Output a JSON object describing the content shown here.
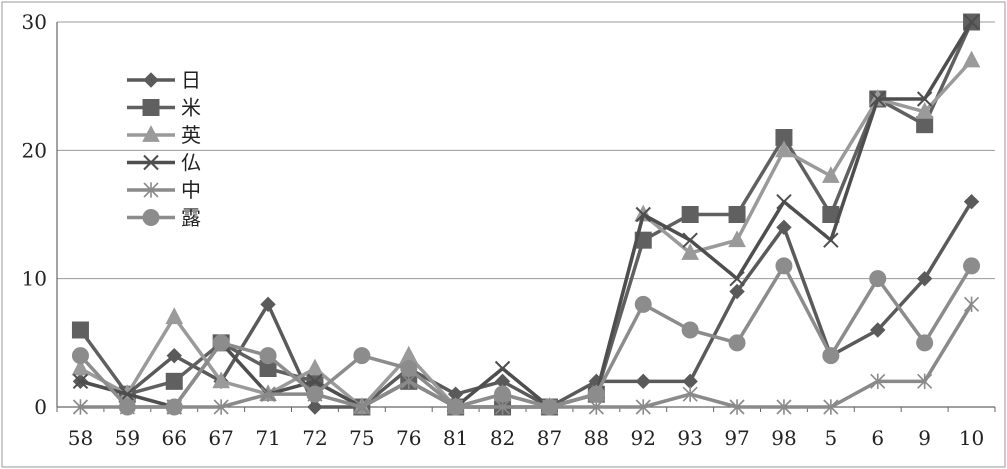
{
  "chart_data": {
    "type": "line",
    "title": "",
    "xlabel": "",
    "ylabel": "",
    "ylim": [
      0,
      30
    ],
    "yticks": [
      0,
      10,
      20,
      30
    ],
    "grid": "horizontal",
    "legend_position": "left",
    "categories": [
      "58",
      "59",
      "66",
      "67",
      "71",
      "72",
      "75",
      "76",
      "81",
      "82",
      "87",
      "88",
      "92",
      "93",
      "97",
      "98",
      "5",
      "6",
      "9",
      "10"
    ],
    "series": [
      {
        "name": "日",
        "marker": "diamond",
        "color": "#5a5a5a",
        "values": [
          2,
          1,
          4,
          2,
          8,
          0,
          0,
          3,
          1,
          2,
          0,
          2,
          2,
          2,
          9,
          14,
          4,
          6,
          10,
          16
        ]
      },
      {
        "name": "米",
        "marker": "square",
        "color": "#606060",
        "values": [
          6,
          1,
          2,
          5,
          3,
          2,
          0,
          2,
          0,
          0,
          0,
          1,
          13,
          15,
          15,
          21,
          15,
          24,
          22,
          30
        ]
      },
      {
        "name": "英",
        "marker": "triangle",
        "color": "#9a9a9a",
        "values": [
          3,
          1,
          7,
          2,
          1,
          3,
          0,
          4,
          0,
          1,
          0,
          1,
          15,
          12,
          13,
          20,
          18,
          24,
          23,
          27
        ]
      },
      {
        "name": "仏",
        "marker": "x",
        "color": "#4e4e4e",
        "values": [
          2,
          1,
          0,
          5,
          1,
          2,
          0,
          2,
          0,
          3,
          0,
          1,
          15,
          13,
          10,
          16,
          13,
          24,
          24,
          30
        ]
      },
      {
        "name": "中",
        "marker": "asterisk",
        "color": "#8a8a8a",
        "values": [
          0,
          0,
          0,
          0,
          1,
          1,
          0,
          2,
          0,
          0,
          0,
          0,
          0,
          1,
          0,
          0,
          0,
          2,
          2,
          8
        ]
      },
      {
        "name": "露",
        "marker": "circle",
        "color": "#8c8c8c",
        "values": [
          4,
          0,
          0,
          5,
          4,
          1,
          4,
          3,
          0,
          1,
          0,
          1,
          8,
          6,
          5,
          11,
          4,
          10,
          5,
          11
        ]
      }
    ]
  }
}
